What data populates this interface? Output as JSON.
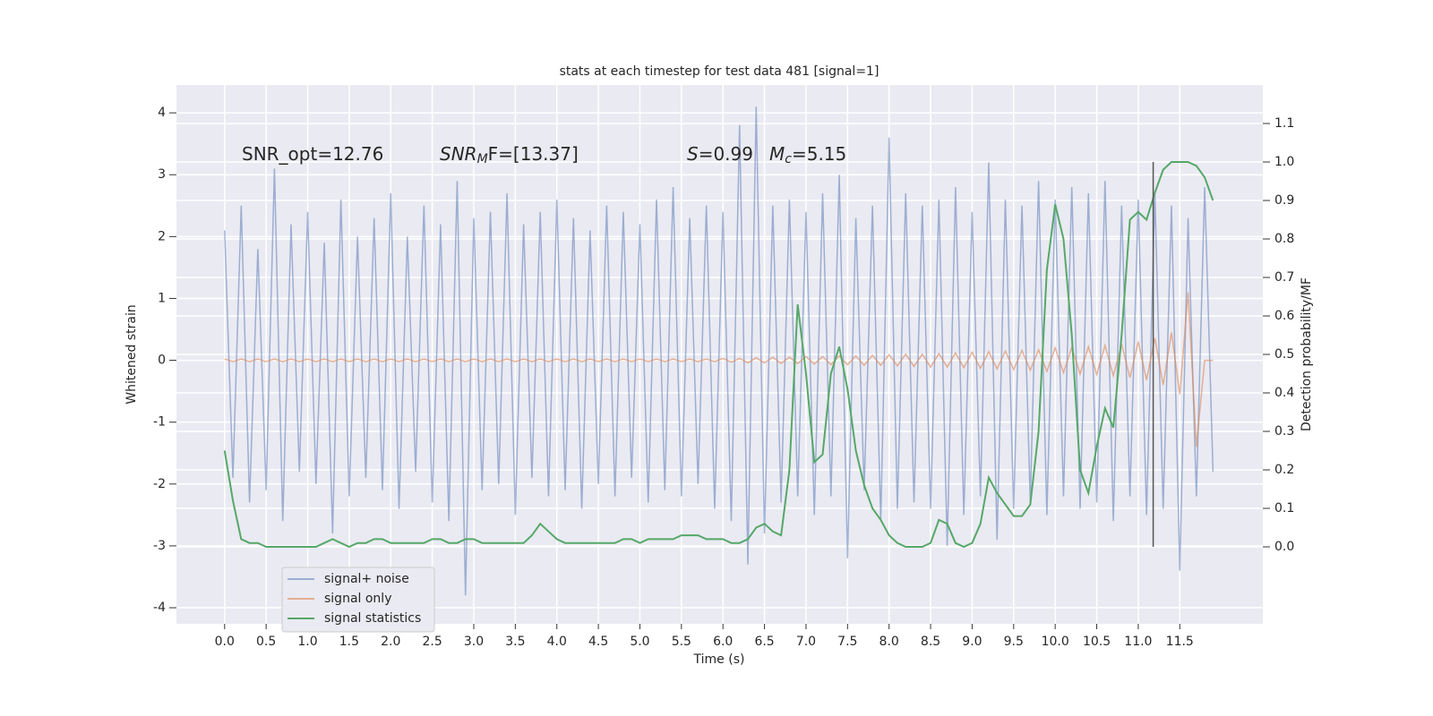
{
  "chart_data": {
    "type": "line",
    "title": "stats at each timestep for test data 481 [signal=1]",
    "xlabel": "Time (s)",
    "ylabel": "Whitened strain",
    "y2label": "Detection probability/MF",
    "annotations": [
      {
        "parts": [
          {
            "text": "SNR_opt=12.76",
            "style": "normal"
          }
        ]
      },
      {
        "parts": [
          {
            "text": "SNR",
            "style": "italic"
          },
          {
            "text": "M",
            "style": "italic-sub"
          },
          {
            "text": "F=[13.37]",
            "style": "normal"
          }
        ]
      },
      {
        "parts": [
          {
            "text": "S",
            "style": "italic"
          },
          {
            "text": "=0.99",
            "style": "normal"
          }
        ]
      },
      {
        "parts": [
          {
            "text": "M",
            "style": "italic"
          },
          {
            "text": "c",
            "style": "italic-sub"
          },
          {
            "text": "=5.15",
            "style": "normal"
          }
        ]
      }
    ],
    "x": [
      0.0,
      0.1,
      0.2,
      0.3,
      0.4,
      0.5,
      0.6,
      0.7,
      0.8,
      0.9,
      1.0,
      1.1,
      1.2,
      1.3,
      1.4,
      1.5,
      1.6,
      1.7,
      1.8,
      1.9,
      2.0,
      2.1,
      2.2,
      2.3,
      2.4,
      2.5,
      2.6,
      2.7,
      2.8,
      2.9,
      3.0,
      3.1,
      3.2,
      3.3,
      3.4,
      3.5,
      3.6,
      3.7,
      3.8,
      3.9,
      4.0,
      4.1,
      4.2,
      4.3,
      4.4,
      4.5,
      4.6,
      4.7,
      4.8,
      4.9,
      5.0,
      5.1,
      5.2,
      5.3,
      5.4,
      5.5,
      5.6,
      5.7,
      5.8,
      5.9,
      6.0,
      6.1,
      6.2,
      6.3,
      6.4,
      6.5,
      6.6,
      6.7,
      6.8,
      6.9,
      7.0,
      7.1,
      7.2,
      7.3,
      7.4,
      7.5,
      7.6,
      7.7,
      7.8,
      7.9,
      8.0,
      8.1,
      8.2,
      8.3,
      8.4,
      8.5,
      8.6,
      8.7,
      8.8,
      8.9,
      9.0,
      9.1,
      9.2,
      9.3,
      9.4,
      9.5,
      9.6,
      9.7,
      9.8,
      9.9,
      10.0,
      10.1,
      10.2,
      10.3,
      10.4,
      10.5,
      10.6,
      10.7,
      10.8,
      10.9,
      11.0,
      11.1,
      11.2,
      11.3,
      11.4,
      11.5,
      11.6,
      11.7,
      11.8,
      11.9
    ],
    "series": [
      {
        "name": "signal+ noise",
        "color": "#4c72b0",
        "opacity": 0.5,
        "values": [
          2.1,
          -1.9,
          2.5,
          -2.3,
          1.8,
          -2.1,
          3.1,
          -2.6,
          2.2,
          -1.8,
          2.4,
          -2.0,
          1.9,
          -2.8,
          2.6,
          -2.2,
          2.0,
          -1.9,
          2.3,
          -2.1,
          2.7,
          -2.4,
          2.0,
          -1.8,
          2.5,
          -2.3,
          2.2,
          -2.6,
          2.9,
          -3.8,
          2.3,
          -2.1,
          2.4,
          -2.0,
          2.7,
          -2.5,
          2.2,
          -1.9,
          2.4,
          -2.2,
          2.6,
          -2.1,
          2.3,
          -2.4,
          2.1,
          -2.0,
          2.5,
          -2.2,
          2.4,
          -1.9,
          2.2,
          -2.3,
          2.6,
          -2.1,
          2.8,
          -2.2,
          2.3,
          -2.0,
          2.5,
          -2.4,
          2.4,
          -2.6,
          3.8,
          -3.3,
          4.1,
          -2.8,
          2.5,
          -2.3,
          2.6,
          -2.2,
          2.4,
          -2.5,
          2.7,
          -2.2,
          3.0,
          -3.2,
          2.3,
          -2.1,
          2.5,
          -2.6,
          3.6,
          -2.4,
          2.7,
          -2.3,
          2.5,
          -2.4,
          2.6,
          -3.0,
          2.8,
          -2.5,
          2.4,
          -2.2,
          3.2,
          -2.9,
          2.6,
          -2.4,
          2.5,
          -2.3,
          2.9,
          -2.5,
          2.6,
          -2.2,
          2.8,
          -2.4,
          2.7,
          -2.3,
          2.9,
          -2.6,
          2.5,
          -2.2,
          2.6,
          -2.5,
          2.7,
          -2.4,
          2.5,
          -3.4,
          2.3,
          -2.2,
          2.8,
          -1.8
        ]
      },
      {
        "name": "signal only",
        "color": "#dd8452",
        "opacity": 0.6,
        "values": [
          0.02,
          -0.02,
          0.02,
          -0.02,
          0.02,
          -0.02,
          0.02,
          -0.02,
          0.02,
          -0.02,
          0.02,
          -0.02,
          0.02,
          -0.02,
          0.02,
          -0.02,
          0.02,
          -0.02,
          0.02,
          -0.02,
          0.02,
          -0.02,
          0.02,
          -0.02,
          0.02,
          -0.02,
          0.02,
          -0.02,
          0.02,
          -0.02,
          0.02,
          -0.02,
          0.02,
          -0.02,
          0.02,
          -0.02,
          0.02,
          -0.02,
          0.02,
          -0.02,
          0.02,
          -0.02,
          0.02,
          -0.02,
          0.02,
          -0.02,
          0.02,
          -0.02,
          0.02,
          -0.02,
          0.02,
          -0.02,
          0.02,
          -0.02,
          0.02,
          -0.02,
          0.02,
          -0.02,
          0.02,
          -0.02,
          0.03,
          -0.03,
          0.03,
          -0.04,
          0.04,
          -0.04,
          0.05,
          -0.05,
          0.05,
          -0.05,
          0.06,
          -0.06,
          0.06,
          -0.07,
          0.07,
          -0.07,
          0.07,
          -0.08,
          0.08,
          -0.08,
          0.09,
          -0.09,
          0.1,
          -0.1,
          0.1,
          -0.11,
          0.11,
          -0.11,
          0.12,
          -0.12,
          0.13,
          -0.13,
          0.14,
          -0.14,
          0.15,
          -0.15,
          0.16,
          -0.16,
          0.17,
          -0.18,
          0.2,
          -0.2,
          0.21,
          -0.22,
          0.22,
          -0.23,
          0.24,
          -0.25,
          0.26,
          -0.28,
          0.3,
          -0.32,
          0.36,
          -0.4,
          0.45,
          -0.55,
          1.1,
          -1.4,
          0.0,
          0.0
        ]
      },
      {
        "name": "signal statistics",
        "color": "#55a868",
        "opacity": 1,
        "axis": "y2",
        "values": [
          0.25,
          0.12,
          0.02,
          0.01,
          0.01,
          0.0,
          0.0,
          0.0,
          0.0,
          0.0,
          0.0,
          0.0,
          0.01,
          0.02,
          0.01,
          0.0,
          0.01,
          0.01,
          0.02,
          0.02,
          0.01,
          0.01,
          0.01,
          0.01,
          0.01,
          0.02,
          0.02,
          0.01,
          0.01,
          0.02,
          0.02,
          0.01,
          0.01,
          0.01,
          0.01,
          0.01,
          0.01,
          0.03,
          0.06,
          0.04,
          0.02,
          0.01,
          0.01,
          0.01,
          0.01,
          0.01,
          0.01,
          0.01,
          0.02,
          0.02,
          0.01,
          0.02,
          0.02,
          0.02,
          0.02,
          0.03,
          0.03,
          0.03,
          0.02,
          0.02,
          0.02,
          0.01,
          0.01,
          0.02,
          0.05,
          0.06,
          0.04,
          0.03,
          0.2,
          0.63,
          0.45,
          0.22,
          0.24,
          0.45,
          0.52,
          0.41,
          0.25,
          0.16,
          0.1,
          0.07,
          0.03,
          0.01,
          0.0,
          0.0,
          0.0,
          0.01,
          0.07,
          0.06,
          0.01,
          0.0,
          0.01,
          0.06,
          0.18,
          0.14,
          0.11,
          0.08,
          0.08,
          0.11,
          0.3,
          0.72,
          0.89,
          0.8,
          0.55,
          0.2,
          0.14,
          0.26,
          0.36,
          0.31,
          0.55,
          0.85,
          0.87,
          0.85,
          0.92,
          0.98,
          1.0,
          1.0,
          1.0,
          0.99,
          0.96,
          0.9
        ]
      }
    ],
    "vline": {
      "x": 11.18,
      "y": [
        0,
        1.0
      ],
      "color": "#555555",
      "axis": "y2"
    },
    "xlim": [
      -0.58,
      12.5
    ],
    "ylim": [
      -4.26,
      4.45
    ],
    "y2lim": [
      -0.2,
      1.2
    ],
    "xticks": [
      {
        "value": 0,
        "label": "0.0"
      },
      {
        "value": 0.5,
        "label": "0.5"
      },
      {
        "value": 1,
        "label": "1.0"
      },
      {
        "value": 1.5,
        "label": "1.5"
      },
      {
        "value": 2,
        "label": "2.0"
      },
      {
        "value": 2.5,
        "label": "2.5"
      },
      {
        "value": 3,
        "label": "3.0"
      },
      {
        "value": 3.5,
        "label": "3.5"
      },
      {
        "value": 4,
        "label": "4.0"
      },
      {
        "value": 4.5,
        "label": "4.5"
      },
      {
        "value": 5,
        "label": "5.0"
      },
      {
        "value": 5.5,
        "label": "5.5"
      },
      {
        "value": 6,
        "label": "6.0"
      },
      {
        "value": 6.5,
        "label": "6.5"
      },
      {
        "value": 7,
        "label": "7.0"
      },
      {
        "value": 7.5,
        "label": "7.5"
      },
      {
        "value": 8,
        "label": "8.0"
      },
      {
        "value": 8.5,
        "label": "8.5"
      },
      {
        "value": 9,
        "label": "9.0"
      },
      {
        "value": 9.5,
        "label": "9.5"
      },
      {
        "value": 10,
        "label": "10.0"
      },
      {
        "value": 10.5,
        "label": "10.5"
      },
      {
        "value": 11,
        "label": "11.0"
      },
      {
        "value": 11.5,
        "label": "11.5"
      }
    ],
    "yticks": [
      -4,
      -3,
      -2,
      -1,
      0,
      1,
      2,
      3,
      4
    ],
    "y2ticks": [
      {
        "value": 0,
        "label": "0.0"
      },
      {
        "value": 0.1,
        "label": "0.1"
      },
      {
        "value": 0.2,
        "label": "0.2"
      },
      {
        "value": 0.3,
        "label": "0.3"
      },
      {
        "value": 0.4,
        "label": "0.4"
      },
      {
        "value": 0.5,
        "label": "0.5"
      },
      {
        "value": 0.6,
        "label": "0.6"
      },
      {
        "value": 0.7,
        "label": "0.7"
      },
      {
        "value": 0.8,
        "label": "0.8"
      },
      {
        "value": 0.9,
        "label": "0.9"
      },
      {
        "value": 1,
        "label": "1.0"
      },
      {
        "value": 1.1,
        "label": "1.1"
      }
    ],
    "grid": true,
    "legend": "lower left"
  }
}
